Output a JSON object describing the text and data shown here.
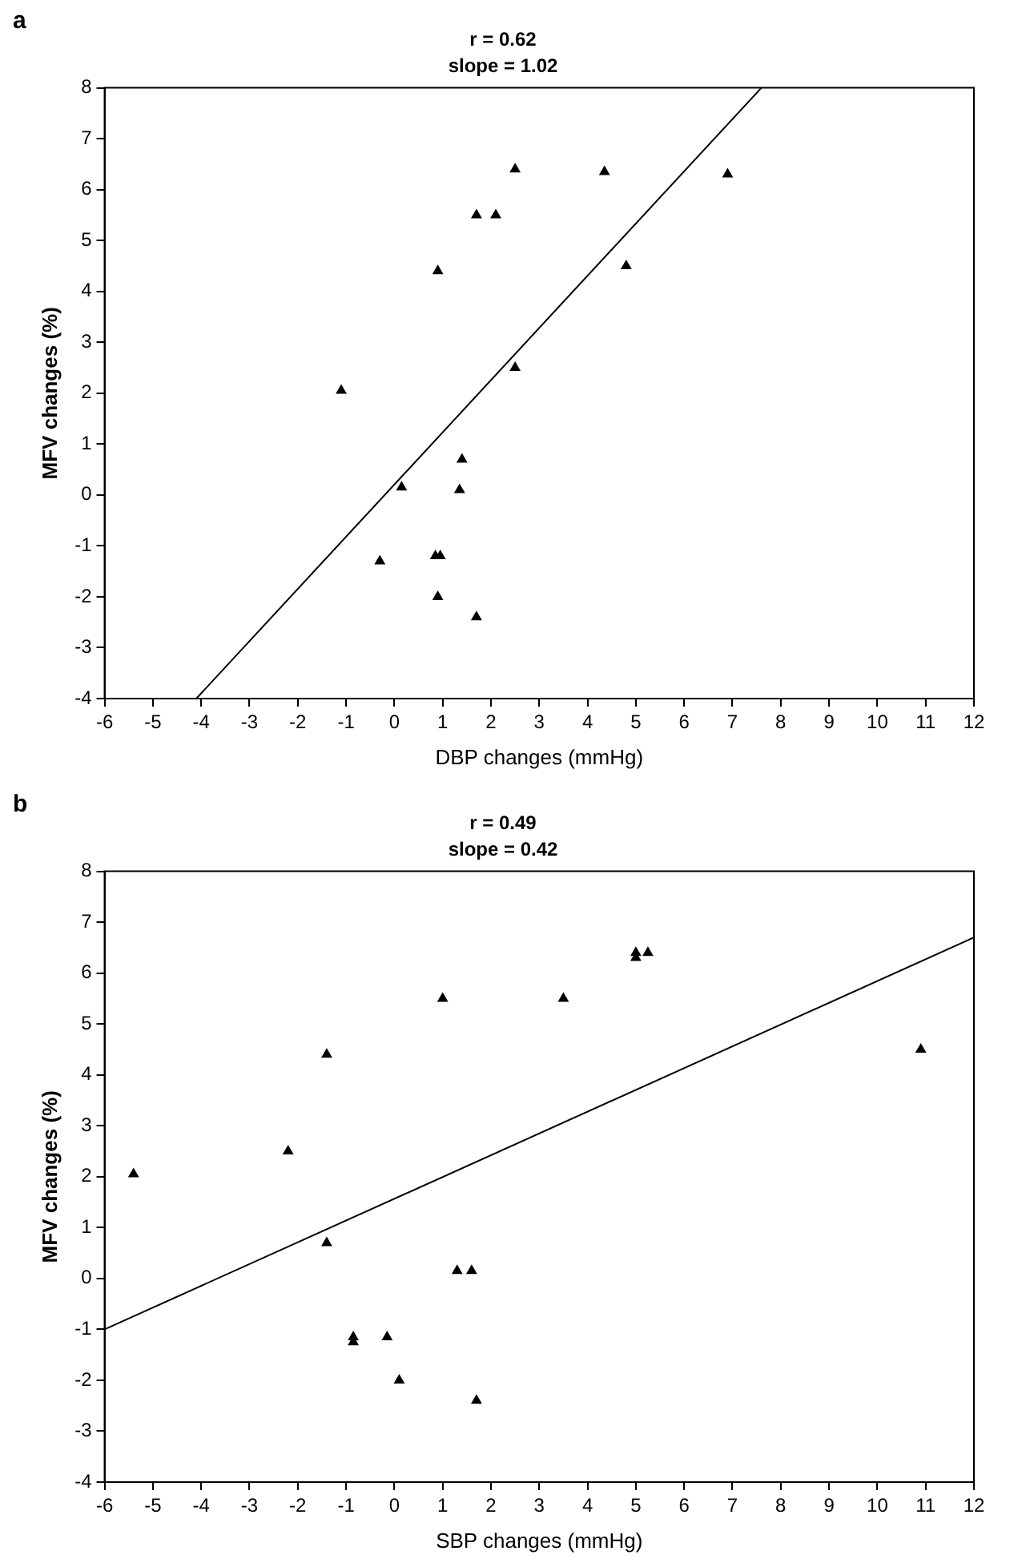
{
  "chart_data": [
    {
      "type": "scatter",
      "title": "r = 0.62",
      "subtitle": "slope = 1.02",
      "xlabel": "DBP changes (mmHg)",
      "ylabel": "MFV changes (%)",
      "annotations": [
        "a"
      ],
      "grid": false,
      "legend": false,
      "xlim": [
        -6,
        12
      ],
      "xticks": [
        -6,
        -5,
        -4,
        -3,
        -2,
        -1,
        0,
        1,
        2,
        3,
        4,
        5,
        6,
        7,
        8,
        9,
        10,
        11,
        12
      ],
      "ylim": [
        -4,
        8
      ],
      "yticks": [
        -4,
        -3,
        -2,
        -1,
        0,
        1,
        2,
        3,
        4,
        5,
        6,
        7,
        8
      ],
      "series": [
        {
          "marker": "triangle",
          "color": "#000000",
          "x": [
            -1.1,
            0.15,
            -0.3,
            0.85,
            0.95,
            0.9,
            1.4,
            1.35,
            1.7,
            0.9,
            1.7,
            2.1,
            2.5,
            2.5,
            4.35,
            4.8,
            6.9
          ],
          "values": [
            2.05,
            0.15,
            -1.3,
            -1.2,
            -1.2,
            -2.0,
            0.7,
            0.1,
            -2.4,
            4.4,
            5.5,
            5.5,
            6.4,
            2.5,
            6.35,
            4.5,
            6.3
          ]
        },
        {
          "type": "line",
          "color": "#000000",
          "x": [
            -4.1,
            7.6
          ],
          "values": [
            -4,
            8
          ]
        }
      ]
    },
    {
      "type": "scatter",
      "title": "r = 0.49",
      "subtitle": "slope = 0.42",
      "xlabel": "SBP changes (mmHg)",
      "ylabel": "MFV changes (%)",
      "annotations": [
        "b"
      ],
      "grid": false,
      "legend": false,
      "xlim": [
        -6,
        12
      ],
      "xticks": [
        -6,
        -5,
        -4,
        -3,
        -2,
        -1,
        0,
        1,
        2,
        3,
        4,
        5,
        6,
        7,
        8,
        9,
        10,
        11,
        12
      ],
      "ylim": [
        -4,
        8
      ],
      "yticks": [
        -4,
        -3,
        -2,
        -1,
        0,
        1,
        2,
        3,
        4,
        5,
        6,
        7,
        8
      ],
      "series": [
        {
          "marker": "triangle",
          "color": "#000000",
          "x": [
            -5.4,
            -2.2,
            -1.4,
            -1.4,
            -0.85,
            -0.85,
            -0.15,
            0.1,
            1.0,
            1.3,
            1.6,
            1.7,
            3.5,
            5.0,
            5.0,
            5.25,
            10.9
          ],
          "values": [
            2.05,
            2.5,
            4.4,
            0.7,
            -1.15,
            -1.25,
            -1.15,
            -2.0,
            5.5,
            0.15,
            0.15,
            -2.4,
            5.5,
            6.3,
            6.4,
            6.4,
            4.5
          ]
        },
        {
          "type": "line",
          "color": "#000000",
          "x": [
            -6,
            12
          ],
          "values": [
            -1,
            6.7
          ]
        }
      ]
    }
  ]
}
